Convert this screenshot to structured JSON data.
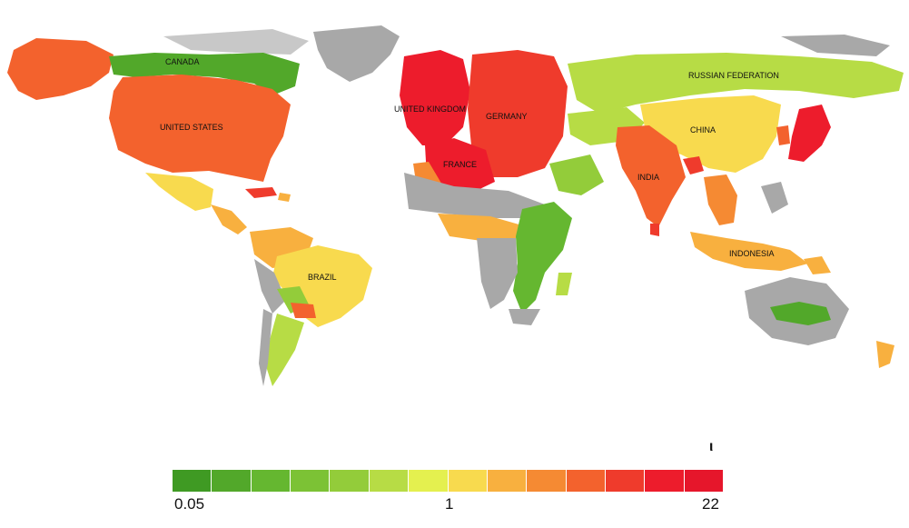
{
  "map": {
    "country_labels": {
      "canada": "CANADA",
      "united_states": "UNITED STATES",
      "united_kingdom": "UNITED KINGDOM",
      "germany": "GERMANY",
      "france": "FRANCE",
      "russia": "RUSSIAN FEDERATION",
      "china": "CHINA",
      "india": "INDIA",
      "indonesia": "INDONESIA",
      "brazil": "BRAZIL"
    },
    "no_data_color": "#a8a8a8"
  },
  "legend": {
    "colors": [
      "#3f9a23",
      "#52a82a",
      "#65b730",
      "#7cc235",
      "#93cc3a",
      "#b7dc45",
      "#e4f04f",
      "#f8da4e",
      "#f8b03f",
      "#f58a33",
      "#f3622d",
      "#ef3b2c",
      "#ed1c2c",
      "#e6162b"
    ],
    "tick_min": "0.05",
    "tick_mid": "1",
    "tick_max": "22",
    "mark": "ι"
  }
}
